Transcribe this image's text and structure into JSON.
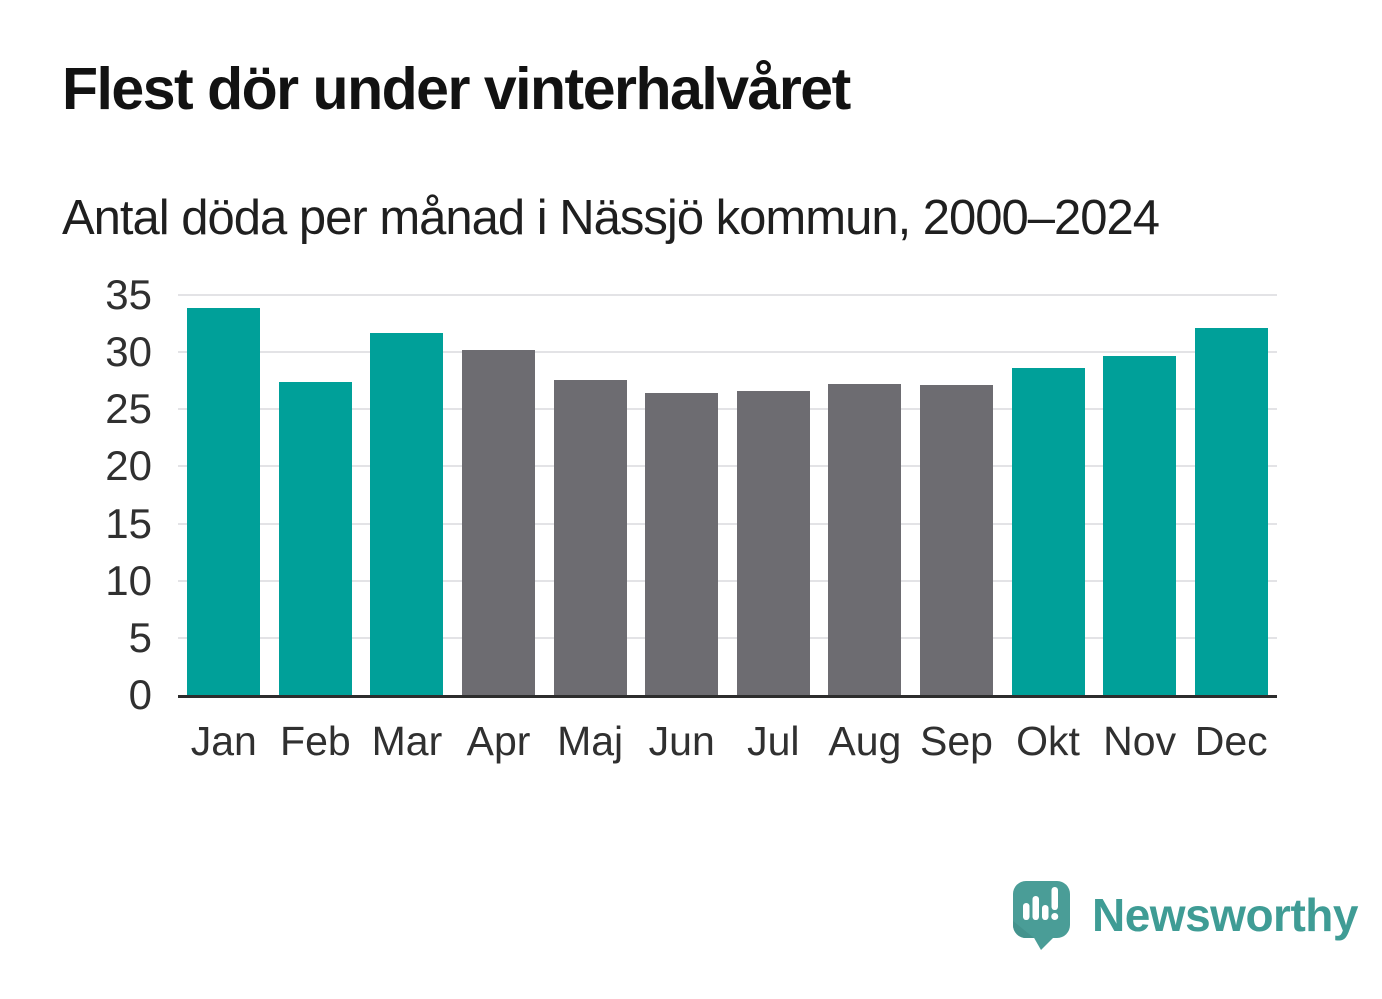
{
  "title": "Flest dör under vinterhalvåret",
  "subtitle": "Antal döda per månad i Nässjö kommun, 2000–2024",
  "colors": {
    "winter_bar": "#00a099",
    "summer_bar": "#6d6c71",
    "gridline": "#e3e3e6",
    "axis_line": "#2d2d2d",
    "tick_text": "#303030",
    "title_text": "#121212",
    "logo_teal": "#3f9c95"
  },
  "chart_data": {
    "type": "bar",
    "categories": [
      "Jan",
      "Feb",
      "Mar",
      "Apr",
      "Maj",
      "Jun",
      "Jul",
      "Aug",
      "Sep",
      "Okt",
      "Nov",
      "Dec"
    ],
    "values": [
      33.9,
      27.4,
      31.7,
      30.2,
      27.6,
      26.4,
      26.6,
      27.2,
      27.1,
      28.6,
      29.7,
      32.1
    ],
    "bar_colors": [
      "#00a099",
      "#00a099",
      "#00a099",
      "#6d6c71",
      "#6d6c71",
      "#6d6c71",
      "#6d6c71",
      "#6d6c71",
      "#6d6c71",
      "#00a099",
      "#00a099",
      "#00a099"
    ],
    "title": "Flest dör under vinterhalvåret",
    "subtitle": "Antal döda per månad i Nässjö kommun, 2000–2024",
    "xlabel": "",
    "ylabel": "",
    "ylim": [
      0,
      35
    ],
    "yticks": [
      0,
      5,
      10,
      15,
      20,
      25,
      30,
      35
    ],
    "grid": true,
    "legend": "none"
  },
  "branding": {
    "logo_text": "Newsworthy",
    "logo_icon": "newsworthy-speech-bubble-bar-chart-icon"
  }
}
